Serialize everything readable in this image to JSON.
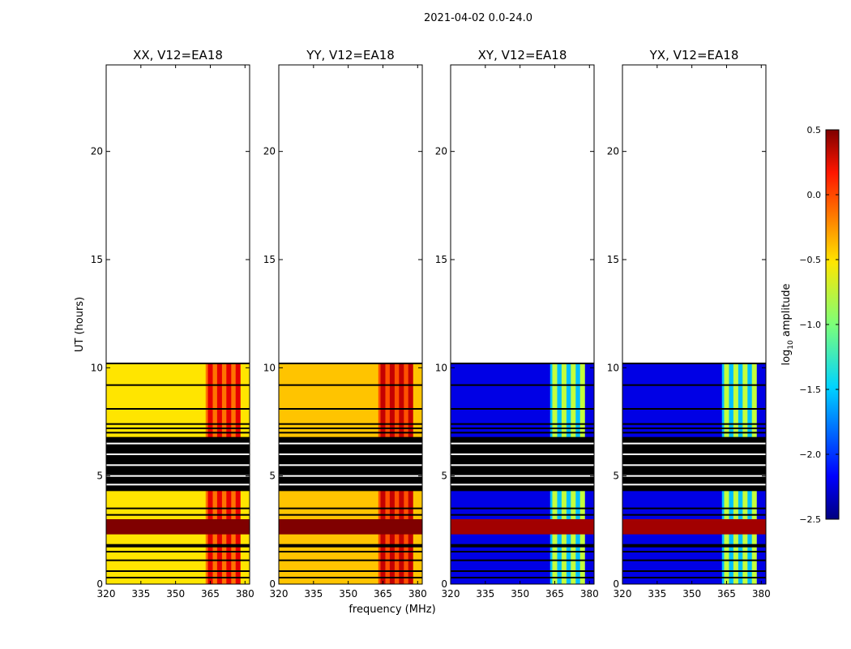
{
  "figure": {
    "suptitle": "2021-04-02 0.0-24.0",
    "ylabel": "UT (hours)",
    "xlabel": "frequency (MHz)"
  },
  "colorbar": {
    "label_base": "log",
    "label_sub": "10",
    "label_rest": " amplitude",
    "range": [
      -2.5,
      0.5
    ],
    "ticks": [
      "0.5",
      "0.0",
      "−0.5",
      "−1.0",
      "−1.5",
      "−2.0",
      "−2.5"
    ],
    "tick_values": [
      0.5,
      0.0,
      -0.5,
      -1.0,
      -1.5,
      -2.0,
      -2.5
    ],
    "colormap": "jet"
  },
  "chart_data": {
    "type": "heatmap",
    "x_range": [
      320,
      382
    ],
    "x_ticks": [
      320,
      335,
      350,
      365,
      380
    ],
    "y_range": [
      0,
      24
    ],
    "y_ticks": [
      0,
      5,
      10,
      15,
      20
    ],
    "data_end_hours": 10.2,
    "rfi_band_mhz": [
      363,
      378
    ],
    "rfi_channels_mhz": [
      365,
      369,
      373,
      377
    ],
    "black_flagged_spans": [
      [
        6.8,
        4.3
      ],
      [
        1.85,
        1.7
      ]
    ],
    "bright_band_hours": [
      2.3,
      3.0
    ],
    "panels": [
      {
        "title": "XX, V12=EA18",
        "base_log10_amp": -0.55,
        "rfi_log10_amp": 0.2,
        "band_log10_amp": 0.5
      },
      {
        "title": "YY, V12=EA18",
        "base_log10_amp": -0.45,
        "rfi_log10_amp": 0.3,
        "band_log10_amp": 0.5
      },
      {
        "title": "XY, V12=EA18",
        "base_log10_amp": -2.2,
        "rfi_log10_amp": -0.8,
        "band_log10_amp": 0.4
      },
      {
        "title": "YX, V12=EA18",
        "base_log10_amp": -2.2,
        "rfi_log10_amp": -0.8,
        "band_log10_amp": 0.4
      }
    ]
  }
}
